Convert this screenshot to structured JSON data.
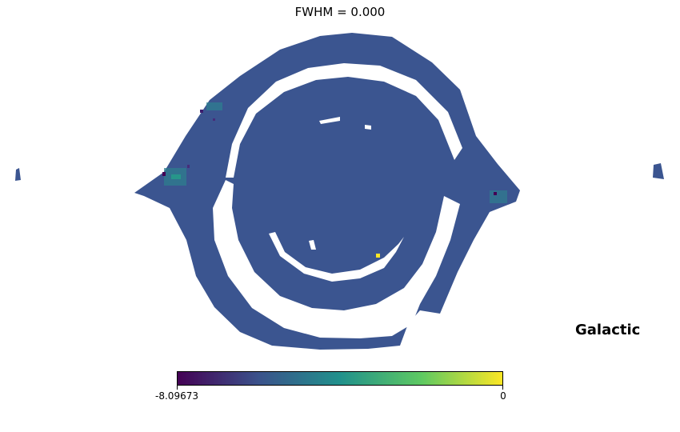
{
  "chart_data": {
    "type": "heatmap",
    "title": "FWHM = 0.000",
    "projection": "mollweide",
    "coord_label": "Galactic",
    "colormap": "viridis",
    "colorbar": {
      "min": -8.09673,
      "max": 0,
      "min_label": "-8.09673",
      "max_label": "0"
    },
    "dominant_value_fraction": 0.32,
    "colors": {
      "dominant": "#3b5590",
      "viridis_stops": [
        "#440154",
        "#3b528b",
        "#21918c",
        "#5ec962",
        "#fde725"
      ]
    }
  }
}
